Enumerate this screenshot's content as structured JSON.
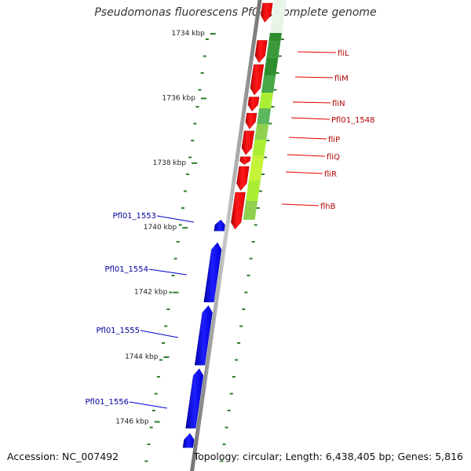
{
  "title": "Pseudomonas fluorescens Pf0-1, complete genome",
  "footer": {
    "accession": "Accession: NC_007492",
    "summary": "Topology: circular; Length: 6,438,405 bp; Genes: 5,816"
  },
  "colors": {
    "forward_gene": "#ff0000",
    "reverse_gene": "#0000ff",
    "forward_label": "#b00000",
    "reverse_label": "#00009a",
    "backbone": "#8c8c8c",
    "tick": "#2d7d2d",
    "gc_dark": "#2e8b2e",
    "gc_light": "#aaee33"
  },
  "chart_data": {
    "type": "genome-map",
    "unit": "kbp",
    "scale_ticks": [
      {
        "label": "1734 kbp",
        "position": 1734
      },
      {
        "label": "1736 kbp",
        "position": 1736
      },
      {
        "label": "1738 kbp",
        "position": 1738
      },
      {
        "label": "1740 kbp",
        "position": 1740
      },
      {
        "label": "1742 kbp",
        "position": 1742
      },
      {
        "label": "1744 kbp",
        "position": 1744
      },
      {
        "label": "1746 kbp",
        "position": 1746
      }
    ],
    "forward_genes": [
      {
        "label": "",
        "start": 1733.05,
        "end": 1733.65
      },
      {
        "label": "fliL",
        "start": 1734.2,
        "end": 1734.9
      },
      {
        "label": "fliM",
        "start": 1734.95,
        "end": 1735.9
      },
      {
        "label": "fliN",
        "start": 1735.95,
        "end": 1736.4
      },
      {
        "label": "Pfl01_1548",
        "start": 1736.45,
        "end": 1736.95
      },
      {
        "label": "fliP",
        "start": 1737.0,
        "end": 1737.75
      },
      {
        "label": "fliQ",
        "start": 1737.8,
        "end": 1738.05
      },
      {
        "label": "fliR",
        "start": 1738.1,
        "end": 1738.85
      },
      {
        "label": "flhB",
        "start": 1738.9,
        "end": 1740.05
      }
    ],
    "reverse_genes": [
      {
        "label": "Pfl01_1553",
        "start": 1739.75,
        "end": 1740.1
      },
      {
        "label": "Pfl01_1554",
        "start": 1740.45,
        "end": 1742.3
      },
      {
        "label": "Pfl01_1555",
        "start": 1742.4,
        "end": 1744.25
      },
      {
        "label": "Pfl01_1556",
        "start": 1744.35,
        "end": 1746.2
      },
      {
        "label": "",
        "start": 1746.35,
        "end": 1746.8
      }
    ]
  }
}
